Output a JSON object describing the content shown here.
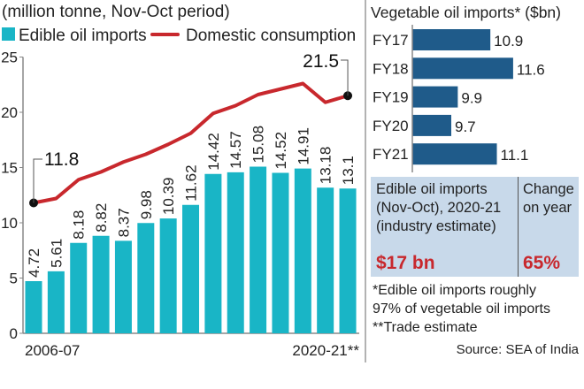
{
  "chart_data": [
    {
      "type": "bar+line",
      "subtitle": "(million tonne, Nov-Oct period)",
      "legend": [
        "Edible oil imports",
        "Domestic consumption"
      ],
      "legend_placement": "top",
      "x_tick_labels": [
        "2006-07",
        "2020-21**"
      ],
      "y_ticks": [
        0,
        5,
        10,
        15,
        20,
        25
      ],
      "ylim": [
        0,
        25
      ],
      "grid": false,
      "series": [
        {
          "name": "Edible oil imports",
          "type": "bar",
          "color": "#19b5c6",
          "values": [
            4.72,
            5.61,
            8.18,
            8.82,
            8.37,
            9.98,
            10.39,
            11.62,
            14.42,
            14.57,
            15.08,
            14.52,
            14.91,
            13.18,
            13.1
          ],
          "labels": [
            "4.72",
            "5.61",
            "8.18",
            "8.82",
            "8.37",
            "9.98",
            "10.39",
            "11.62",
            "14.42",
            "14.57",
            "15.08",
            "14.52",
            "14.91",
            "13.18",
            "13.1"
          ]
        },
        {
          "name": "Domestic consumption",
          "type": "line",
          "color": "#c8282d",
          "values": [
            11.8,
            12.2,
            13.9,
            14.6,
            15.5,
            16.2,
            17.1,
            18.1,
            19.9,
            20.6,
            21.6,
            22.1,
            22.6,
            20.9,
            21.5
          ],
          "annotations": {
            "first": "11.8",
            "last": "21.5"
          }
        }
      ]
    },
    {
      "type": "bar",
      "orientation": "horizontal",
      "title": "Vegetable oil imports* ($bn)",
      "categories": [
        "FY17",
        "FY18",
        "FY19",
        "FY20",
        "FY21"
      ],
      "values": [
        10.9,
        11.6,
        9.9,
        9.7,
        11.1
      ],
      "labels": [
        "10.9",
        "11.6",
        "9.9",
        "9.7",
        "11.1"
      ],
      "color": "#1f5b8a"
    }
  ],
  "summary": {
    "col1_lines": [
      "Edible oil imports",
      "(Nov-Oct), 2020-21",
      "(industry estimate)"
    ],
    "col1_value": "$17 bn",
    "col2_lines": [
      "Change",
      "on year"
    ],
    "col2_value": "65%",
    "bg_color": "#c8d9ea",
    "value_color": "#c8282d"
  },
  "notes": [
    "*Edible oil imports roughly",
    "97% of vegetable oil imports",
    "**Trade estimate"
  ],
  "source": "Source: SEA of India"
}
